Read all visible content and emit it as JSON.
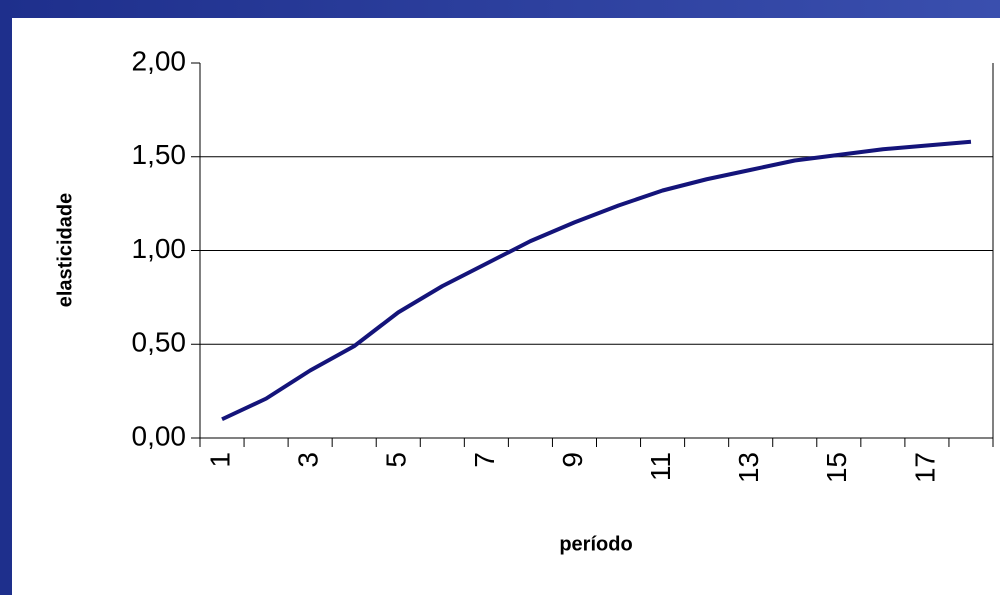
{
  "chart_data": {
    "type": "line",
    "xlabel": "período",
    "ylabel": "elasticidade",
    "categories": [
      "1",
      null,
      "3",
      null,
      "5",
      null,
      "7",
      null,
      "9",
      null,
      "11",
      null,
      "13",
      null,
      "15",
      null,
      "17",
      null
    ],
    "series": [
      {
        "color": "#14147a",
        "values": [
          0.1,
          0.21,
          0.36,
          0.49,
          0.67,
          0.81,
          0.93,
          1.05,
          1.15,
          1.24,
          1.32,
          1.38,
          1.43,
          1.48,
          1.51,
          1.54,
          1.56,
          1.58
        ]
      }
    ],
    "ylim": [
      0,
      2
    ],
    "yticks": [
      {
        "value": 0,
        "label": "0,00"
      },
      {
        "value": 0.5,
        "label": "0,50"
      },
      {
        "value": 1,
        "label": "1,00"
      },
      {
        "value": 1.5,
        "label": "1,50"
      },
      {
        "value": 2,
        "label": "2,00"
      }
    ],
    "grid": true
  }
}
